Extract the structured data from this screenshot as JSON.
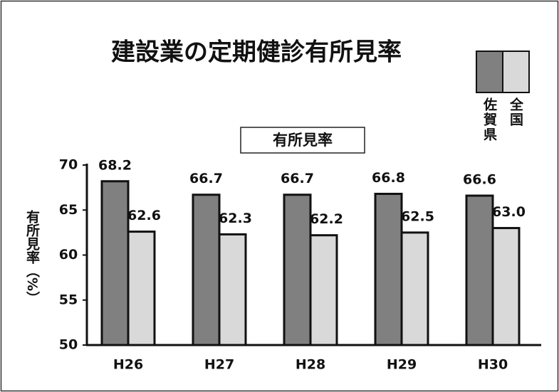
{
  "chart_data": {
    "type": "bar",
    "title": "建設業の定期健診有所見率",
    "subtitle": "有所見率",
    "y_label": "有所見率（%）",
    "categories": [
      "H26",
      "H27",
      "H28",
      "H29",
      "H30"
    ],
    "series": [
      {
        "name": "佐賀県",
        "color": "#808080",
        "values": [
          68.2,
          66.7,
          66.7,
          66.8,
          66.6
        ],
        "value_labels": [
          "68.2",
          "66.7",
          "66.7",
          "66.8",
          "66.6"
        ]
      },
      {
        "name": "全国",
        "color": "#d9d9d9",
        "values": [
          62.6,
          62.3,
          62.2,
          62.5,
          63
        ],
        "value_labels": [
          "62.6",
          "62.3",
          "62.2",
          "62.5",
          "63.0"
        ]
      }
    ],
    "ylim": [
      50,
      70
    ],
    "yticks": [
      50,
      55,
      60,
      65,
      70
    ],
    "grid": false,
    "legend": "top-right"
  }
}
